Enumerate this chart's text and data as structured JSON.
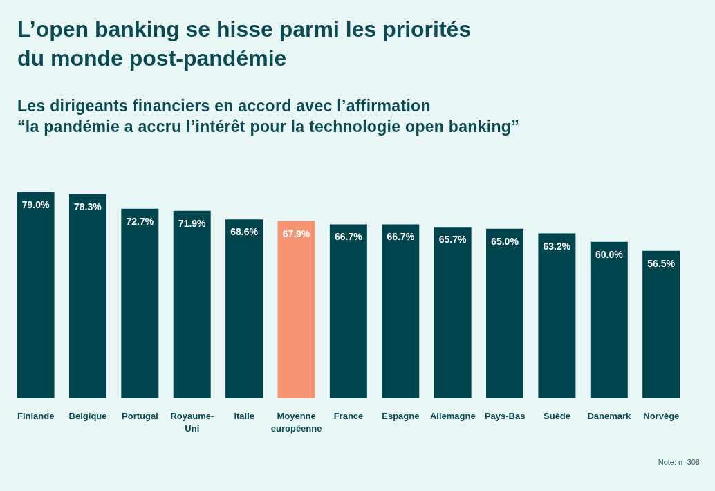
{
  "chart_data": {
    "type": "bar",
    "title": "L’open banking se hisse parmi les priorités\ndu monde post-pandémie",
    "subtitle": "Les dirigeants financiers en accord avec l’affirmation\n“la pandémie a accru l’intérêt pour la technologie open banking”",
    "categories": [
      "Finlande",
      "Belgique",
      "Portugal",
      "Royaume-Uni",
      "Italie",
      "Moyenne européenne",
      "France",
      "Espagne",
      "Allemagne",
      "Pays-Bas",
      "Suède",
      "Danemark",
      "Norvège"
    ],
    "values": [
      79.0,
      78.3,
      72.7,
      71.9,
      68.6,
      67.9,
      66.7,
      66.7,
      65.7,
      65.0,
      63.2,
      60.0,
      56.5
    ],
    "value_labels": [
      "79.0%",
      "78.3%",
      "72.7%",
      "71.9%",
      "68.6%",
      "67.9%",
      "66.7%",
      "66.7%",
      "65.7%",
      "65.0%",
      "63.2%",
      "60.0%",
      "56.5%"
    ],
    "colors": [
      "#00444e",
      "#00444e",
      "#00444e",
      "#00444e",
      "#00444e",
      "#f69473",
      "#00444e",
      "#00444e",
      "#00444e",
      "#00444e",
      "#00444e",
      "#00444e",
      "#00444e"
    ],
    "tick_labels": "x",
    "annotations": [
      "Note: n=308"
    ]
  }
}
